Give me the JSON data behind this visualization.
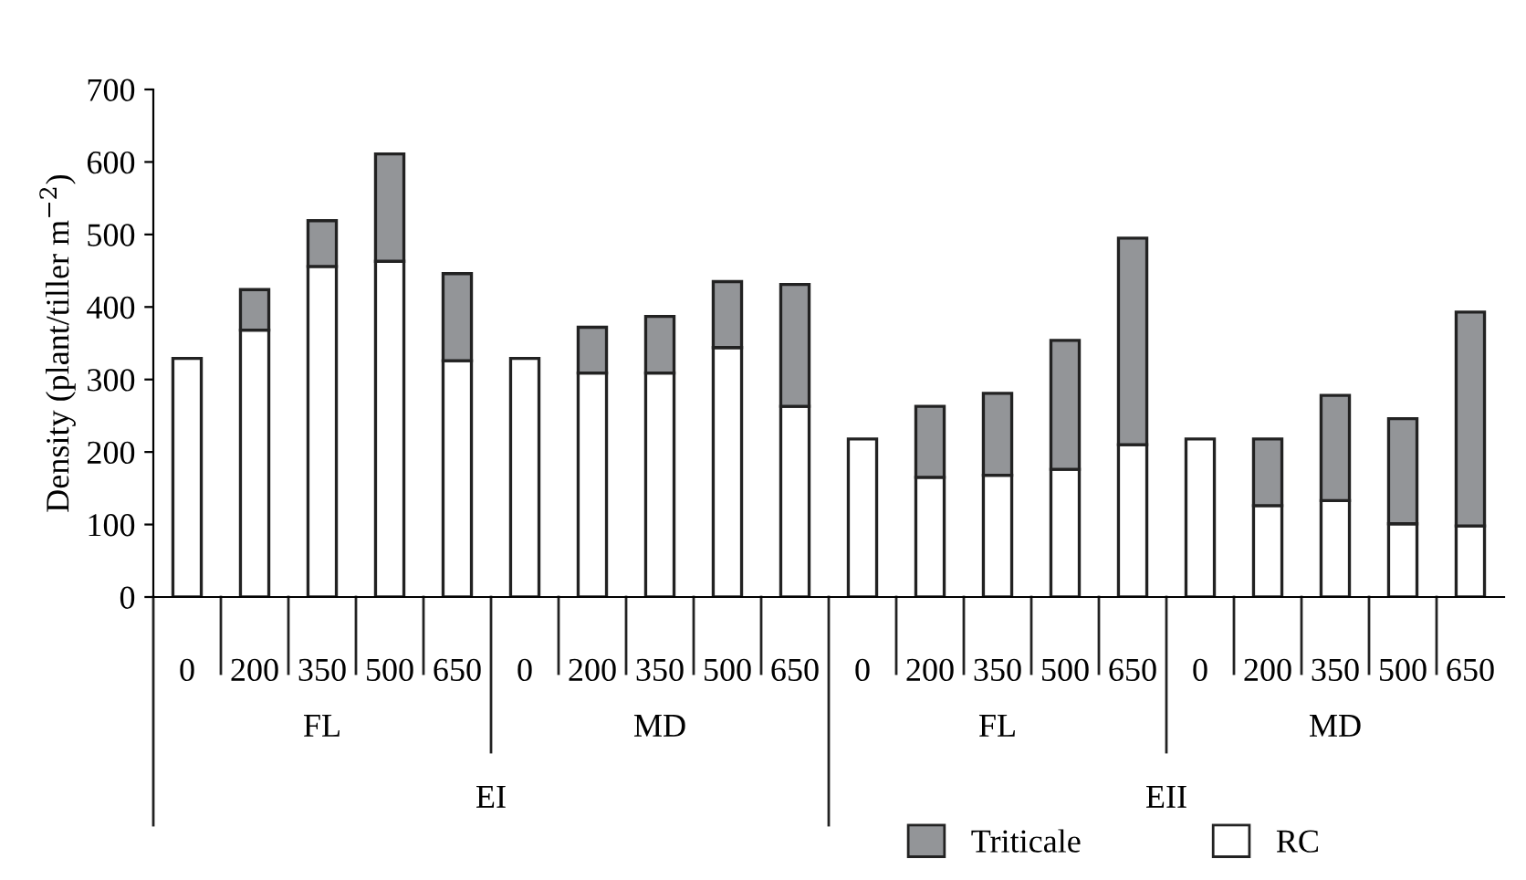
{
  "chart_data": {
    "type": "bar",
    "stacked": true,
    "ylabel": "Density (plant/tiller m$^{−2}$)",
    "categories": [
      "0",
      "200",
      "350",
      "500",
      "650",
      "0",
      "200",
      "350",
      "500",
      "650",
      "0",
      "200",
      "350",
      "500",
      "650",
      "0",
      "200",
      "350",
      "500",
      "650"
    ],
    "series": [
      {
        "name": "RC",
        "color": "#ffffff",
        "values": [
          329,
          368,
          456,
          463,
          326,
          329,
          309,
          309,
          344,
          263,
          218,
          165,
          168,
          176,
          210,
          218,
          126,
          133,
          101,
          98
        ]
      },
      {
        "name": "Triticale",
        "color": "#939598",
        "values": [
          null,
          56,
          63,
          148,
          120,
          null,
          63,
          78,
          91,
          168,
          null,
          98,
          113,
          178,
          285,
          null,
          92,
          145,
          145,
          295
        ]
      }
    ],
    "annotations": [
      "FL",
      "MD",
      "FL",
      "MD",
      "EI",
      "EII"
    ],
    "ylim": [
      0,
      700
    ],
    "yticks": [
      0,
      100,
      200,
      300,
      400,
      500,
      600,
      700
    ],
    "grid": false,
    "legend": "bottom"
  }
}
